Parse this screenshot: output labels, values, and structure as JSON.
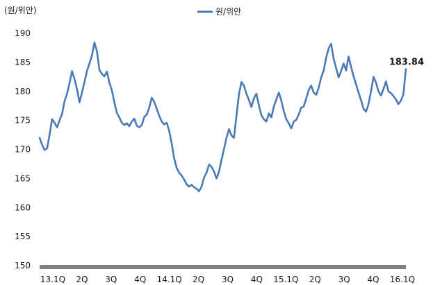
{
  "chart_data": {
    "type": "line",
    "unit_label": "(원/위안)",
    "series": [
      {
        "name": "원/위안",
        "color": "#4a7ab5",
        "values": [
          172.0,
          170.8,
          169.9,
          170.2,
          172.5,
          175.2,
          174.6,
          173.8,
          175.0,
          176.1,
          178.3,
          179.6,
          181.4,
          183.5,
          182.1,
          180.4,
          178.1,
          179.8,
          181.6,
          183.5,
          184.8,
          186.2,
          188.4,
          186.9,
          183.7,
          183.0,
          182.6,
          183.4,
          181.5,
          180.2,
          178.1,
          176.3,
          175.5,
          174.6,
          174.2,
          174.5,
          174.0,
          174.8,
          175.3,
          174.1,
          173.8,
          174.2,
          175.6,
          176.0,
          177.2,
          178.9,
          178.2,
          177.0,
          175.8,
          174.8,
          174.3,
          174.6,
          173.2,
          171.0,
          168.5,
          166.8,
          166.0,
          165.5,
          164.8,
          164.0,
          163.6,
          163.9,
          163.5,
          163.2,
          162.8,
          163.6,
          165.2,
          166.0,
          167.4,
          167.0,
          166.2,
          165.0,
          166.2,
          168.2,
          170.1,
          172.0,
          173.5,
          172.4,
          172.0,
          175.8,
          179.5,
          181.6,
          181.0,
          179.6,
          178.5,
          177.3,
          178.8,
          179.6,
          177.6,
          175.9,
          175.2,
          174.8,
          176.2,
          175.5,
          177.4,
          178.6,
          179.8,
          178.4,
          176.6,
          175.2,
          174.5,
          173.6,
          174.8,
          175.1,
          176.0,
          177.2,
          177.4,
          178.8,
          180.2,
          181.0,
          179.8,
          179.4,
          180.6,
          182.4,
          183.6,
          185.8,
          187.4,
          188.2,
          185.6,
          184.0,
          182.4,
          183.5,
          184.8,
          183.6,
          186.0,
          184.2,
          182.6,
          181.2,
          179.8,
          178.5,
          177.0,
          176.5,
          177.8,
          180.0,
          182.5,
          181.5,
          180.0,
          179.3,
          180.4,
          181.7,
          180.0,
          179.7,
          179.2,
          178.6,
          177.8,
          178.4,
          179.5,
          183.84
        ]
      }
    ],
    "x_tick_labels": [
      "13.1Q",
      "2Q",
      "3Q",
      "4Q",
      "14.1Q",
      "2Q",
      "3Q",
      "4Q",
      "15.1Q",
      "2Q",
      "3Q",
      "4Q",
      "16.1Q"
    ],
    "y_tick_labels": [
      "150",
      "155",
      "160",
      "165",
      "170",
      "175",
      "180",
      "185",
      "190"
    ],
    "ylim": [
      150,
      190
    ],
    "ytick_step": 5,
    "last_value_label": "183.84",
    "legend_position": "top-center",
    "grid": false,
    "axis_color": "#808080"
  }
}
